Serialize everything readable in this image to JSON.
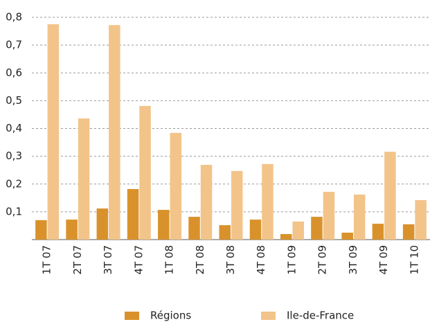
{
  "chart_data": {
    "type": "bar",
    "categories": [
      "1T 07",
      "2T 07",
      "3T 07",
      "4T 07",
      "1T 08",
      "2T 08",
      "3T 08",
      "4T 08",
      "1T 09",
      "2T 09",
      "3T 09",
      "4T 09",
      "1T 10"
    ],
    "series": [
      {
        "name": "Régions",
        "color": "#d9922b",
        "values": [
          0.07,
          0.072,
          0.112,
          0.182,
          0.107,
          0.082,
          0.052,
          0.072,
          0.02,
          0.082,
          0.025,
          0.057,
          0.055
        ]
      },
      {
        "name": "Ile-de-France",
        "color": "#f2c48a",
        "values": [
          0.775,
          0.436,
          0.772,
          0.481,
          0.384,
          0.269,
          0.247,
          0.272,
          0.065,
          0.172,
          0.162,
          0.316,
          0.142
        ]
      }
    ],
    "ylim": [
      0,
      0.8
    ],
    "yticks": [
      {
        "value": 0.1,
        "label": "0,1"
      },
      {
        "value": 0.2,
        "label": "0,2"
      },
      {
        "value": 0.3,
        "label": "0,3"
      },
      {
        "value": 0.4,
        "label": "0,4"
      },
      {
        "value": 0.5,
        "label": "0,5"
      },
      {
        "value": 0.6,
        "label": "0,6"
      },
      {
        "value": 0.7,
        "label": "0,7"
      },
      {
        "value": 0.8,
        "label": "0,8"
      }
    ],
    "grid": true
  }
}
